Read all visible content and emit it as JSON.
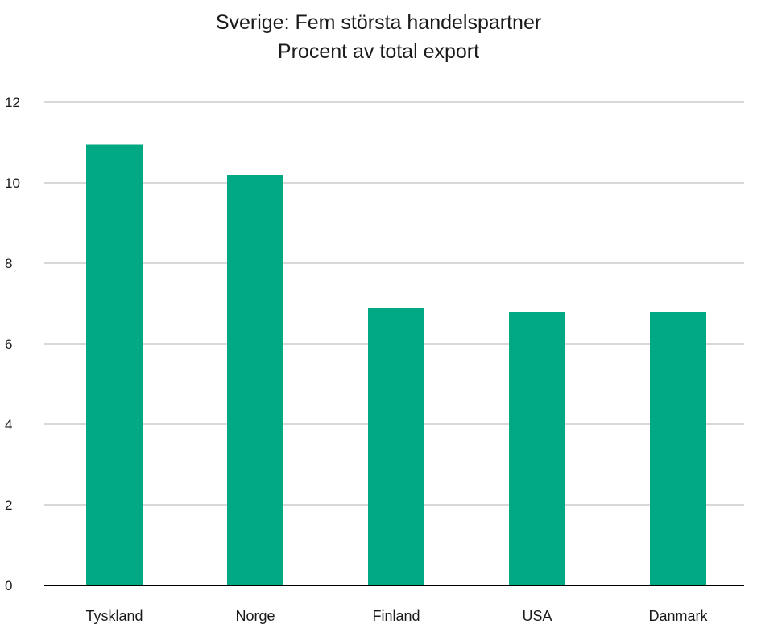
{
  "chart_data": {
    "type": "bar",
    "title": "Sverige: Fem största handelspartner",
    "subtitle": "Procent av total export",
    "xlabel": "",
    "ylabel": "",
    "categories": [
      "Tyskland",
      "Norge",
      "Finland",
      "USA",
      "Danmark"
    ],
    "values": [
      10.95,
      10.2,
      6.88,
      6.8,
      6.8
    ],
    "ylim": [
      0,
      12
    ],
    "yticks": [
      0,
      2,
      4,
      6,
      8,
      10,
      12
    ],
    "grid": true,
    "legend": "none",
    "bar_color": "#00a884",
    "grid_color": "#cccccc",
    "axis_color": "#000000"
  }
}
